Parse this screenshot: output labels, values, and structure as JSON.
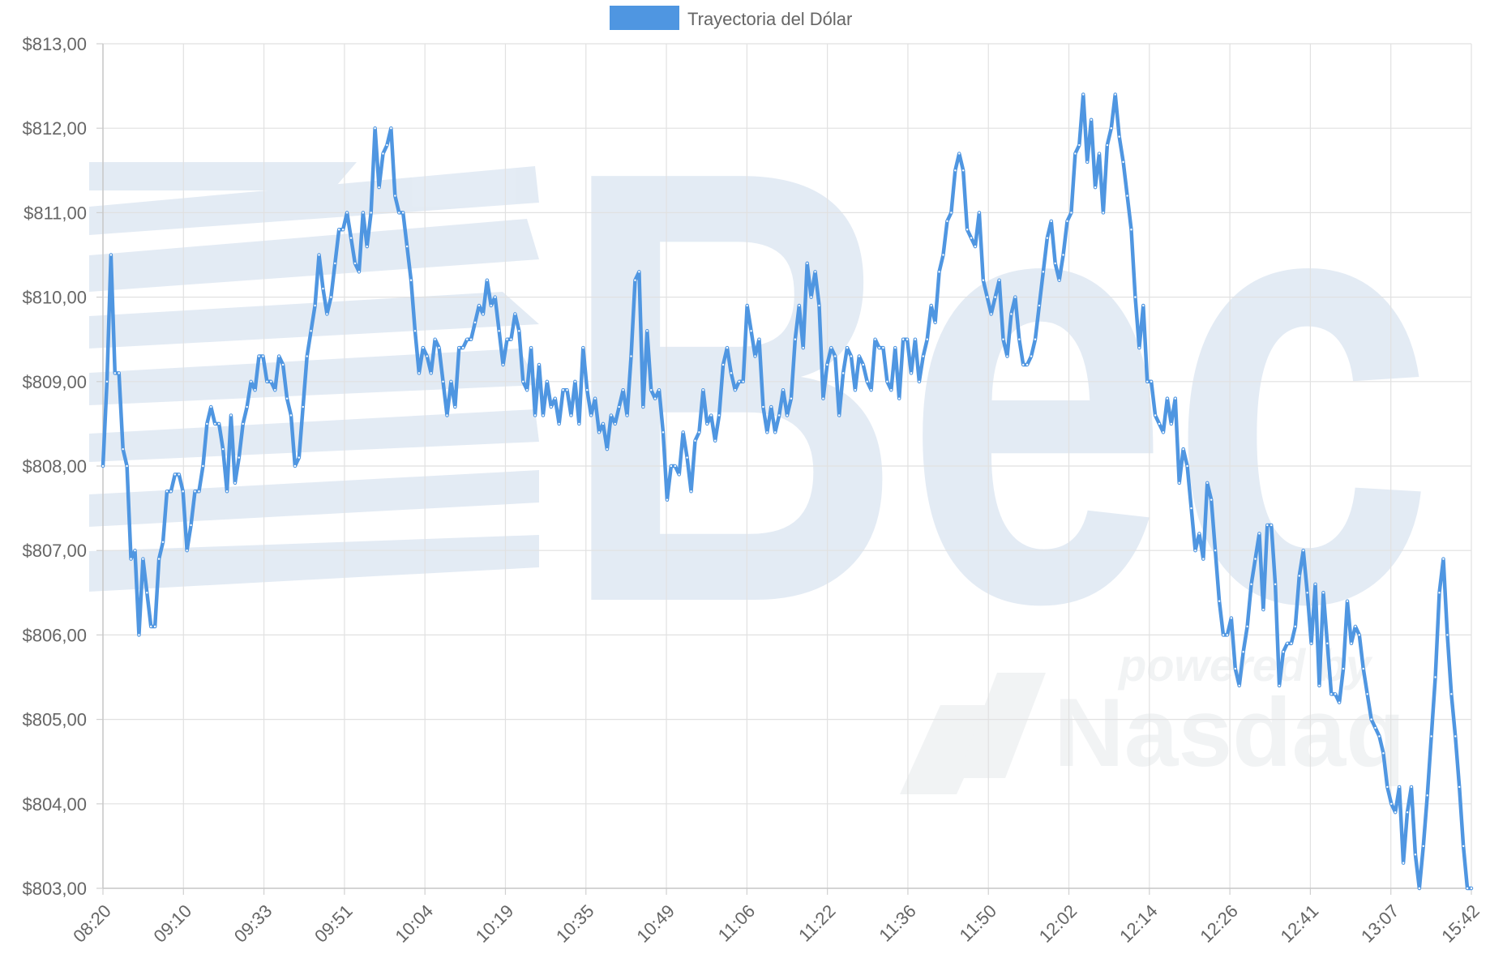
{
  "chart_data": {
    "type": "line",
    "legend": {
      "position": "top",
      "entries": [
        {
          "label": "Trayectoria del Dólar",
          "color": "#4f96e1"
        }
      ]
    },
    "watermark": {
      "text": "Bec",
      "subtext": "powered by",
      "brand": "Nasdaq"
    },
    "x_ticks": [
      "08:20",
      "09:10",
      "09:33",
      "09:51",
      "10:04",
      "10:19",
      "10:35",
      "10:49",
      "11:06",
      "11:22",
      "11:36",
      "11:50",
      "12:02",
      "12:14",
      "12:26",
      "12:41",
      "13:07",
      "15:42"
    ],
    "y_ticks": [
      "$803,00",
      "$804,00",
      "$805,00",
      "$806,00",
      "$807,00",
      "$808,00",
      "$809,00",
      "$810,00",
      "$811,00",
      "$812,00",
      "$813,00"
    ],
    "ylim": [
      803,
      813
    ],
    "grid": true,
    "series": [
      {
        "name": "Trayectoria del Dólar",
        "color": "#4f96e1",
        "values": [
          808.0,
          809.0,
          810.5,
          809.1,
          809.1,
          808.2,
          808.0,
          806.9,
          807.0,
          806.0,
          806.9,
          806.5,
          806.1,
          806.1,
          806.9,
          807.1,
          807.7,
          807.7,
          807.9,
          807.9,
          807.7,
          807.0,
          807.3,
          807.7,
          807.7,
          808.0,
          808.5,
          808.7,
          808.5,
          808.5,
          808.2,
          807.7,
          808.6,
          807.8,
          808.1,
          808.5,
          808.7,
          809.0,
          808.9,
          809.3,
          809.3,
          809.0,
          809.0,
          808.9,
          809.3,
          809.2,
          808.8,
          808.6,
          808.0,
          808.1,
          808.7,
          809.3,
          809.6,
          809.9,
          810.5,
          810.1,
          809.8,
          810.0,
          810.4,
          810.8,
          810.8,
          811.0,
          810.7,
          810.4,
          810.3,
          811.0,
          810.6,
          811.0,
          812.0,
          811.3,
          811.7,
          811.8,
          812.0,
          811.2,
          811.0,
          811.0,
          810.6,
          810.2,
          809.6,
          809.1,
          809.4,
          809.3,
          809.1,
          809.5,
          809.4,
          809.0,
          808.6,
          809.0,
          808.7,
          809.4,
          809.4,
          809.5,
          809.5,
          809.7,
          809.9,
          809.8,
          810.2,
          809.9,
          810.0,
          809.6,
          809.2,
          809.5,
          809.5,
          809.8,
          809.6,
          809.0,
          808.9,
          809.4,
          808.6,
          809.2,
          808.6,
          809.0,
          808.7,
          808.8,
          808.5,
          808.9,
          808.9,
          808.6,
          809.0,
          808.5,
          809.4,
          808.9,
          808.6,
          808.8,
          808.4,
          808.5,
          808.2,
          808.6,
          808.5,
          808.7,
          808.9,
          808.6,
          809.3,
          810.2,
          810.3,
          808.7,
          809.6,
          808.9,
          808.8,
          808.9,
          808.4,
          807.6,
          808.0,
          808.0,
          807.9,
          808.4,
          808.1,
          807.7,
          808.3,
          808.4,
          808.9,
          808.5,
          808.6,
          808.3,
          808.6,
          809.2,
          809.4,
          809.1,
          808.9,
          809.0,
          809.0,
          809.9,
          809.6,
          809.3,
          809.5,
          808.7,
          808.4,
          808.7,
          808.4,
          808.6,
          808.9,
          808.6,
          808.8,
          809.5,
          809.9,
          809.4,
          810.4,
          810.0,
          810.3,
          809.9,
          808.8,
          809.2,
          809.4,
          809.3,
          808.6,
          809.1,
          809.4,
          809.3,
          808.9,
          809.3,
          809.2,
          809.0,
          808.9,
          809.5,
          809.4,
          809.4,
          809.0,
          808.9,
          809.4,
          808.8,
          809.5,
          809.5,
          809.1,
          809.5,
          809.0,
          809.3,
          809.5,
          809.9,
          809.7,
          810.3,
          810.5,
          810.9,
          811.0,
          811.5,
          811.7,
          811.5,
          810.8,
          810.7,
          810.6,
          811.0,
          810.2,
          810.0,
          809.8,
          810.0,
          810.2,
          809.5,
          809.3,
          809.8,
          810.0,
          809.5,
          809.2,
          809.2,
          809.3,
          809.5,
          809.9,
          810.3,
          810.7,
          810.9,
          810.4,
          810.2,
          810.5,
          810.9,
          811.0,
          811.7,
          811.8,
          812.4,
          811.6,
          812.1,
          811.3,
          811.7,
          811.0,
          811.8,
          812.0,
          812.4,
          811.9,
          811.6,
          811.2,
          810.8,
          810.0,
          809.4,
          809.9,
          809.0,
          809.0,
          808.6,
          808.5,
          808.4,
          808.8,
          808.5,
          808.8,
          807.8,
          808.2,
          808.0,
          807.5,
          807.0,
          807.2,
          806.9,
          807.8,
          807.6,
          807.0,
          806.4,
          806.0,
          806.0,
          806.2,
          805.6,
          805.4,
          805.8,
          806.1,
          806.6,
          806.9,
          807.2,
          806.3,
          807.3,
          807.3,
          806.6,
          805.4,
          805.8,
          805.9,
          805.9,
          806.1,
          806.7,
          807.0,
          806.5,
          805.9,
          806.6,
          805.4,
          806.5,
          805.9,
          805.3,
          805.3,
          805.2,
          805.6,
          806.4,
          805.9,
          806.1,
          806.0,
          805.6,
          805.3,
          805.0,
          804.9,
          804.8,
          804.6,
          804.2,
          804.0,
          803.9,
          804.2,
          803.3,
          803.9,
          804.2,
          803.4,
          803.0,
          803.5,
          804.1,
          804.8,
          805.5,
          806.5,
          806.9,
          806.0,
          805.3,
          804.8,
          804.2,
          803.5,
          803.0,
          803.0
        ]
      }
    ]
  }
}
